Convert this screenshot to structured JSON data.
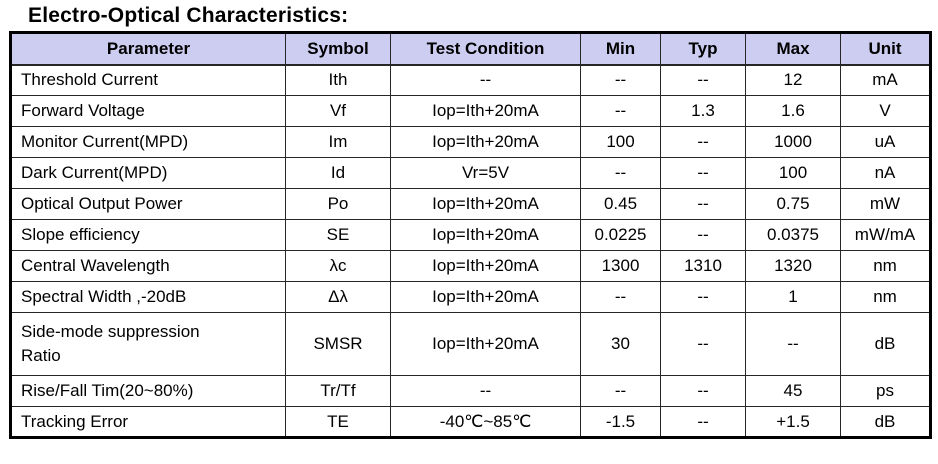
{
  "title": "Electro-Optical Characteristics:",
  "table": {
    "headers": [
      "Parameter",
      "Symbol",
      "Test Condition",
      "Min",
      "Typ",
      "Max",
      "Unit"
    ],
    "rows": [
      {
        "parameter": "Threshold Current",
        "symbol": "Ith",
        "test_condition": "--",
        "min": "--",
        "typ": "--",
        "max": "12",
        "unit": "mA"
      },
      {
        "parameter": "Forward Voltage",
        "symbol": "Vf",
        "test_condition": "Iop=Ith+20mA",
        "min": "--",
        "typ": "1.3",
        "max": "1.6",
        "unit": "V"
      },
      {
        "parameter": "Monitor Current(MPD)",
        "symbol": "Im",
        "test_condition": "Iop=Ith+20mA",
        "min": "100",
        "typ": "--",
        "max": "1000",
        "unit": "uA"
      },
      {
        "parameter": "Dark Current(MPD)",
        "symbol": "Id",
        "test_condition": "Vr=5V",
        "min": "--",
        "typ": "--",
        "max": "100",
        "unit": "nA"
      },
      {
        "parameter": "Optical Output Power",
        "symbol": "Po",
        "test_condition": "Iop=Ith+20mA",
        "min": "0.45",
        "typ": "--",
        "max": "0.75",
        "unit": "mW"
      },
      {
        "parameter": "Slope efficiency",
        "symbol": "SE",
        "test_condition": "Iop=Ith+20mA",
        "min": "0.0225",
        "typ": "--",
        "max": "0.0375",
        "unit": "mW/mA"
      },
      {
        "parameter": "Central Wavelength",
        "symbol": "λc",
        "test_condition": "Iop=Ith+20mA",
        "min": "1300",
        "typ": "1310",
        "max": "1320",
        "unit": "nm"
      },
      {
        "parameter": "Spectral Width ,-20dB",
        "symbol": "Δλ",
        "test_condition": "Iop=Ith+20mA",
        "min": "--",
        "typ": "--",
        "max": "1",
        "unit": "nm"
      },
      {
        "parameter": "Side-mode suppression\nRatio",
        "symbol": "SMSR",
        "test_condition": "Iop=Ith+20mA",
        "min": "30",
        "typ": "--",
        "max": "--",
        "unit": "dB"
      },
      {
        "parameter": "Rise/Fall Tim(20~80%)",
        "symbol": "Tr/Tf",
        "test_condition": "--",
        "min": "--",
        "typ": "--",
        "max": "45",
        "unit": "ps"
      },
      {
        "parameter": "Tracking Error",
        "symbol": "TE",
        "test_condition": "-40℃~85℃",
        "min": "-1.5",
        "typ": "--",
        "max": "+1.5",
        "unit": "dB"
      }
    ]
  },
  "colors": {
    "header_bg": "#cdcdf2",
    "border_outer": "#000000",
    "border_inner": "#262626",
    "text": "#000000"
  }
}
